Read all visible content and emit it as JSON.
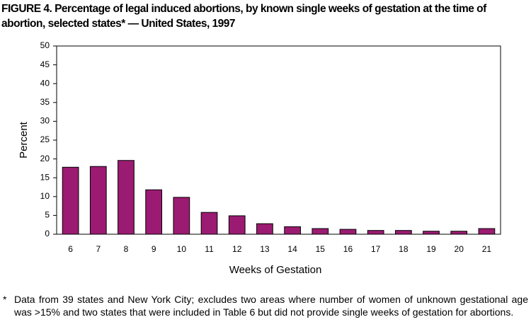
{
  "title": "FIGURE 4. Percentage of legal induced abortions, by known single weeks of gestation at the time of abortion, selected states* — United States, 1997",
  "chart_data": {
    "type": "bar",
    "categories": [
      "6",
      "7",
      "8",
      "9",
      "10",
      "11",
      "12",
      "13",
      "14",
      "15",
      "16",
      "17",
      "18",
      "19",
      "20",
      "21"
    ],
    "values": [
      17.8,
      18.0,
      19.6,
      11.8,
      9.8,
      5.8,
      4.9,
      2.8,
      2.0,
      1.5,
      1.3,
      1.0,
      1.0,
      0.8,
      0.8,
      1.5
    ],
    "color": "#9b1b72",
    "ylim": [
      0,
      50
    ],
    "yticks": [
      0,
      5,
      10,
      15,
      20,
      25,
      30,
      35,
      40,
      45,
      50
    ],
    "x_label": "Weeks of Gestation",
    "y_label": "Percent",
    "grid": false
  },
  "footnote": {
    "marker": "*",
    "text": "Data from 39 states and New York City; excludes two areas where number of women of unknown gestational age was >15% and two states that were included in Table 6 but did not provide single weeks of gestation for abortions."
  }
}
